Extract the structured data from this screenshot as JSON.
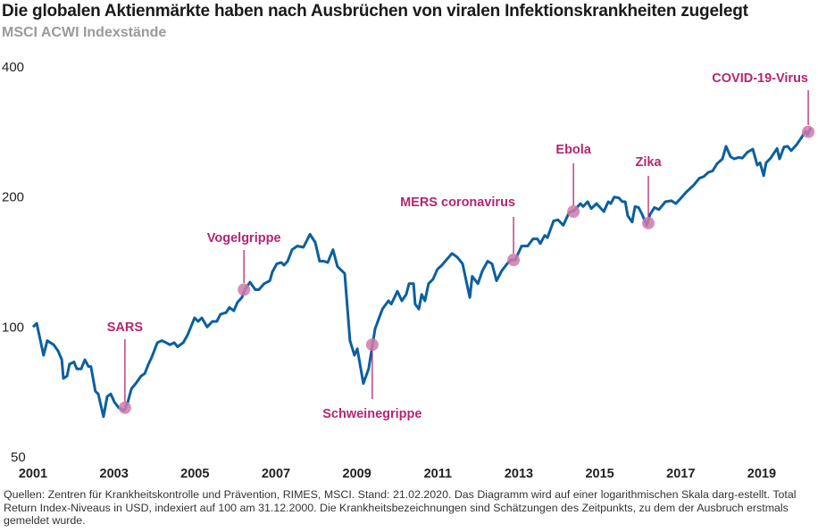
{
  "chart_data": {
    "type": "line",
    "title": "Die globalen Aktienmärkte haben nach Ausbrüchen von viralen Infektionskrankheiten zugelegt",
    "subtitle": "MSCI ACWI Indexstände",
    "xlabel": "",
    "ylabel": "",
    "yscale": "log",
    "ylim": [
      50,
      400
    ],
    "xlim": [
      2001,
      2020.2
    ],
    "grid": false,
    "y_ticks": [
      "50",
      "100",
      "200",
      "400"
    ],
    "y_tick_values": [
      50,
      100,
      200,
      400
    ],
    "x_ticks": [
      "2001",
      "2003",
      "2005",
      "2007",
      "2009",
      "2011",
      "2013",
      "2015",
      "2017",
      "2019"
    ],
    "x_tick_values": [
      2001,
      2003,
      2005,
      2007,
      2009,
      2011,
      2013,
      2015,
      2017,
      2019
    ],
    "colors": {
      "line": "#0b5fa0",
      "event": "#b5266f",
      "marker": "#cf7aa9"
    },
    "series": [
      {
        "x": [
          2001.0,
          2001.09,
          2001.26,
          2001.35,
          2001.51,
          2001.62,
          2001.71,
          2001.75,
          2001.84,
          2001.9,
          2002.01,
          2002.08,
          2002.19,
          2002.28,
          2002.37,
          2002.43,
          2002.54,
          2002.61,
          2002.74,
          2002.83,
          2002.92,
          2003.01,
          2003.12,
          2003.25,
          2003.34,
          2003.43,
          2003.54,
          2003.67,
          2003.76,
          2003.85,
          2003.93,
          2004.07,
          2004.18,
          2004.29,
          2004.38,
          2004.49,
          2004.57,
          2004.71,
          2004.82,
          2004.99,
          2005.08,
          2005.17,
          2005.3,
          2005.43,
          2005.54,
          2005.63,
          2005.77,
          2005.85,
          2005.96,
          2006.05,
          2006.16,
          2006.23,
          2006.36,
          2006.49,
          2006.58,
          2006.71,
          2006.85,
          2006.91,
          2007.02,
          2007.13,
          2007.2,
          2007.29,
          2007.4,
          2007.53,
          2007.68,
          2007.84,
          2007.97,
          2008.08,
          2008.19,
          2008.28,
          2008.41,
          2008.52,
          2008.7,
          2008.83,
          2008.94,
          2009.01,
          2009.16,
          2009.29,
          2009.45,
          2009.63,
          2009.78,
          2009.85,
          2010.0,
          2010.11,
          2010.22,
          2010.29,
          2010.4,
          2010.44,
          2010.53,
          2010.6,
          2010.68,
          2010.77,
          2010.88,
          2010.99,
          2011.1,
          2011.21,
          2011.35,
          2011.48,
          2011.61,
          2011.79,
          2011.85,
          2011.99,
          2012.1,
          2012.23,
          2012.34,
          2012.45,
          2012.58,
          2012.71,
          2012.8,
          2012.91,
          2013.07,
          2013.22,
          2013.35,
          2013.46,
          2013.53,
          2013.64,
          2013.71,
          2013.86,
          2013.97,
          2014.1,
          2014.24,
          2014.37,
          2014.52,
          2014.59,
          2014.7,
          2014.79,
          2014.92,
          2015.1,
          2015.21,
          2015.27,
          2015.36,
          2015.47,
          2015.56,
          2015.63,
          2015.69,
          2015.8,
          2015.87,
          2015.96,
          2016.05,
          2016.16,
          2016.24,
          2016.35,
          2016.46,
          2016.62,
          2016.77,
          2016.88,
          2016.99,
          2017.13,
          2017.32,
          2017.46,
          2017.57,
          2017.68,
          2017.79,
          2017.9,
          2018.03,
          2018.12,
          2018.23,
          2018.32,
          2018.43,
          2018.52,
          2018.65,
          2018.78,
          2018.89,
          2018.96,
          2019.05,
          2019.11,
          2019.22,
          2019.38,
          2019.44,
          2019.55,
          2019.64,
          2019.73,
          2019.86,
          2019.99,
          2020.08,
          2020.13,
          2020.21
        ],
        "values": [
          100,
          102,
          86,
          93,
          91,
          88,
          84,
          76,
          77,
          82,
          83,
          80,
          80,
          84,
          81,
          81,
          71,
          70,
          62,
          69,
          70,
          67,
          65,
          64,
          67,
          72,
          74,
          77,
          78,
          82,
          85,
          92,
          93,
          92,
          91,
          92,
          90,
          92,
          96,
          105,
          103,
          105,
          100,
          103,
          103,
          107,
          108,
          111,
          109,
          114,
          117,
          122,
          127,
          122,
          122,
          126,
          128,
          134,
          140,
          141,
          139,
          142,
          151,
          154,
          153,
          164,
          157,
          142,
          142,
          141,
          151,
          138,
          133,
          93,
          86,
          89,
          74,
          80,
          99,
          110,
          115,
          113,
          121,
          115,
          119,
          126,
          126,
          113,
          110,
          119,
          115,
          126,
          129,
          136,
          139,
          143,
          148,
          145,
          140,
          117,
          131,
          126,
          135,
          142,
          140,
          128,
          135,
          140,
          143,
          143,
          154,
          154,
          160,
          160,
          156,
          163,
          161,
          176,
          177,
          172,
          184,
          186,
          193,
          190,
          195,
          188,
          193,
          185,
          195,
          193,
          200,
          199,
          195,
          195,
          181,
          175,
          190,
          189,
          182,
          172,
          182,
          189,
          187,
          195,
          196,
          193,
          198,
          205,
          213,
          221,
          223,
          228,
          230,
          239,
          245,
          262,
          248,
          245,
          247,
          246,
          254,
          258,
          237,
          240,
          224,
          240,
          246,
          259,
          245,
          261,
          262,
          256,
          264,
          275,
          284,
          279,
          289
        ]
      }
    ],
    "annotations": [
      {
        "label": "SARS",
        "x": 2003.27,
        "value": 65
      },
      {
        "label": "Vogelgrippe",
        "x": 2006.21,
        "value": 122
      },
      {
        "label": "Schweinegrippe",
        "x": 2009.38,
        "value": 91
      },
      {
        "label": "MERS coronavirus",
        "x": 2012.87,
        "value": 143
      },
      {
        "label": "Ebola",
        "x": 2014.35,
        "value": 185
      },
      {
        "label": "Zika",
        "x": 2016.2,
        "value": 174
      },
      {
        "label": "COVID-19-Virus",
        "x": 2020.15,
        "value": 283
      }
    ]
  },
  "footnote": "Quellen: Zentren für Krankheitskontrolle und Prävention, RIMES, MSCI. Stand: 21.02.2020. Das Diagramm wird auf einer logarithmischen Skala darg-estellt. Total Return Index-Niveaus in USD, indexiert auf 100 am 31.12.2000. Die Krankheitsbezeichnungen sind Schätzungen des Zeitpunkts, zu dem der Ausbruch erstmals gemeldet wurde."
}
